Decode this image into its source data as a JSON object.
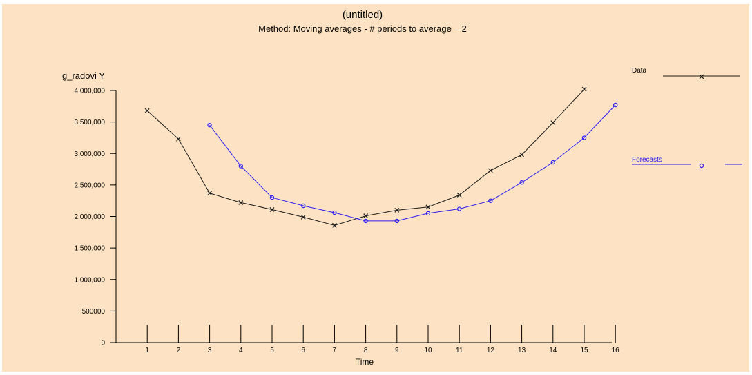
{
  "colors": {
    "background": "#fde3c3",
    "data_series": "#1a1a1a",
    "forecast_series": "#2b1cf5"
  },
  "chart_data": {
    "type": "line",
    "title": "(untitled)",
    "subtitle": "Method: Moving averages - # periods to average = 2",
    "ylabel": "g_radovi Y",
    "xlabel": "Time",
    "ylim": [
      0,
      4000000
    ],
    "xlim": [
      0,
      16
    ],
    "yticks": [
      0,
      500000,
      1000000,
      1500000,
      2000000,
      2500000,
      3000000,
      3500000,
      4000000
    ],
    "ytick_labels": [
      "0",
      "500000",
      "1,000,000",
      "1,500,000",
      "2,000,000",
      "2,500,000",
      "3,000,000",
      "3,500,000",
      "4,000,000"
    ],
    "xticks": [
      1,
      2,
      3,
      4,
      5,
      6,
      7,
      8,
      9,
      10,
      11,
      12,
      13,
      14,
      15,
      16
    ],
    "xtick_labels": [
      "1",
      "2",
      "3",
      "4",
      "5",
      "6",
      "7",
      "8",
      "9",
      "10",
      "11",
      "12",
      "13",
      "14",
      "15",
      "16"
    ],
    "grid": false,
    "legend": "right",
    "series": [
      {
        "name": "Data",
        "marker": "x",
        "x": [
          1,
          2,
          3,
          4,
          5,
          6,
          7,
          8,
          9,
          10,
          11,
          12,
          13,
          14,
          15
        ],
        "values": [
          3680000,
          3230000,
          2370000,
          2220000,
          2110000,
          1990000,
          1860000,
          2010000,
          2100000,
          2150000,
          2340000,
          2730000,
          2980000,
          3490000,
          4020000
        ]
      },
      {
        "name": "Forecasts",
        "marker": "o",
        "x": [
          3,
          4,
          5,
          6,
          7,
          8,
          9,
          10,
          11,
          12,
          13,
          14,
          15,
          16
        ],
        "values": [
          3450000,
          2800000,
          2300000,
          2170000,
          2060000,
          1930000,
          1930000,
          2050000,
          2120000,
          2250000,
          2540000,
          2860000,
          3250000,
          3770000
        ]
      }
    ]
  }
}
